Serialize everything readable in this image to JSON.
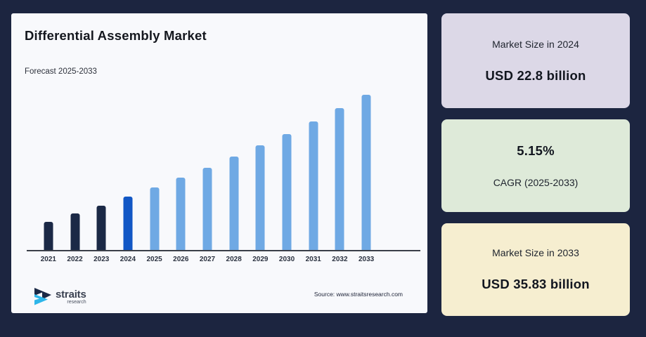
{
  "page": {
    "background": "#1c2540"
  },
  "chart_card": {
    "source": "Source: www.straitsresearch.com",
    "logo_name": "straits",
    "logo_sub": "research",
    "logo_colors": {
      "dark": "#1b2946",
      "cyan": "#2eb6ea"
    }
  },
  "chart_data": {
    "type": "bar",
    "title": "Differential Assembly Market",
    "subtitle": "Forecast 2025-2033",
    "unit": "USD billion",
    "categories": [
      "2021",
      "2022",
      "2023",
      "2024",
      "2025",
      "2026",
      "2027",
      "2028",
      "2029",
      "2030",
      "2031",
      "2032",
      "2033"
    ],
    "values": [
      19.61,
      20.62,
      21.68,
      22.8,
      23.97,
      25.21,
      26.51,
      27.87,
      29.31,
      30.82,
      32.41,
      34.08,
      35.83
    ],
    "labeled_points": {
      "2024": 22.8,
      "2033": 35.83
    },
    "cagr_percent": 5.15,
    "ylim": [
      16,
      37.5
    ],
    "grid": false,
    "legend": "none",
    "segments": [
      "historical",
      "historical",
      "historical",
      "base_year",
      "forecast",
      "forecast",
      "forecast",
      "forecast",
      "forecast",
      "forecast",
      "forecast",
      "forecast",
      "forecast"
    ],
    "segment_colors": {
      "historical": "#1b2946",
      "base_year": "#1257c5",
      "forecast": "#6fa9e4"
    },
    "axis_color": "#3a3f49"
  },
  "stat_cards": [
    {
      "label": "Market Size in 2024",
      "value": "USD 22.8 billion",
      "bg": "#dcd8e7",
      "order": "label_first"
    },
    {
      "label": "CAGR (2025-2033)",
      "value": "5.15%",
      "bg": "#deead9",
      "order": "value_first"
    },
    {
      "label": "Market Size in 2033",
      "value": "USD 35.83 billion",
      "bg": "#f6eed0",
      "order": "label_first"
    }
  ]
}
